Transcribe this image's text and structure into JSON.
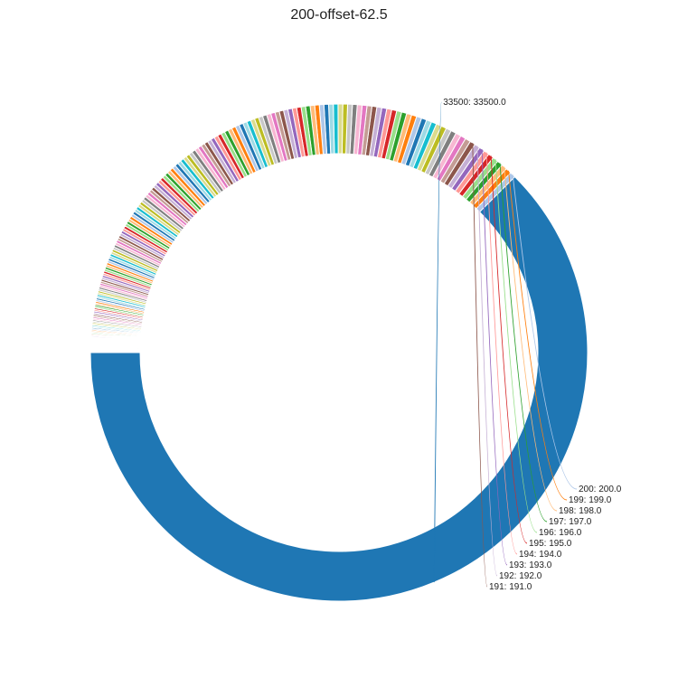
{
  "chart_data": {
    "type": "pie",
    "variant": "donut",
    "title": "200-offset-62.5",
    "start_angle_deg": 180,
    "direction": "counterclockwise",
    "generator": {
      "description": "Large slice then 200 slices valued 200 down to 1",
      "values": [
        33500,
        200,
        199,
        198,
        197,
        196,
        195,
        194,
        193,
        192,
        191,
        190,
        189,
        188,
        187,
        186,
        185,
        184,
        183,
        182,
        181,
        180,
        179,
        178,
        177,
        176,
        175,
        174,
        173,
        172,
        171,
        170,
        169,
        168,
        167,
        166,
        165,
        164,
        163,
        162,
        161,
        160,
        159,
        158,
        157,
        156,
        155,
        154,
        153,
        152,
        151,
        150,
        149,
        148,
        147,
        146,
        145,
        144,
        143,
        142,
        141,
        140,
        139,
        138,
        137,
        136,
        135,
        134,
        133,
        132,
        131,
        130,
        129,
        128,
        127,
        126,
        125,
        124,
        123,
        122,
        121,
        120,
        119,
        118,
        117,
        116,
        115,
        114,
        113,
        112,
        111,
        110,
        109,
        108,
        107,
        106,
        105,
        104,
        103,
        102,
        101,
        100,
        99,
        98,
        97,
        96,
        95,
        94,
        93,
        92,
        91,
        90,
        89,
        88,
        87,
        86,
        85,
        84,
        83,
        82,
        81,
        80,
        79,
        78,
        77,
        76,
        75,
        74,
        73,
        72,
        71,
        70,
        69,
        68,
        67,
        66,
        65,
        64,
        63,
        62,
        61,
        60,
        59,
        58,
        57,
        56,
        55,
        54,
        53,
        52,
        51,
        50,
        49,
        48,
        47,
        46,
        45,
        44,
        43,
        42,
        41,
        40,
        39,
        38,
        37,
        36,
        35,
        34,
        33,
        32,
        31,
        30,
        29,
        28,
        27,
        26,
        25,
        24,
        23,
        22,
        21,
        20,
        19,
        18,
        17,
        16,
        15,
        14,
        13,
        12,
        11,
        10,
        9,
        8,
        7,
        6,
        5,
        4,
        3,
        2,
        1
      ]
    },
    "labeled_slices": [
      {
        "index": 0,
        "text": "33500: 33500.0"
      },
      {
        "index": 1,
        "text": "200: 200.0"
      },
      {
        "index": 2,
        "text": "199: 199.0"
      },
      {
        "index": 3,
        "text": "198: 198.0"
      },
      {
        "index": 4,
        "text": "197: 197.0"
      },
      {
        "index": 5,
        "text": "196: 196.0"
      },
      {
        "index": 6,
        "text": "195: 195.0"
      },
      {
        "index": 7,
        "text": "194: 194.0"
      },
      {
        "index": 8,
        "text": "193: 193.0"
      },
      {
        "index": 9,
        "text": "192: 192.0"
      },
      {
        "index": 10,
        "text": "191: 191.0"
      }
    ],
    "colors": [
      "#1f77b4",
      "#aec7e8",
      "#ff7f0e",
      "#ffbb78",
      "#2ca02c",
      "#98df8a",
      "#d62728",
      "#ff9896",
      "#9467bd",
      "#c5b0d5",
      "#8c564b",
      "#c49c94",
      "#e377c2",
      "#f7b6d2",
      "#7f7f7f",
      "#c7c7c7",
      "#bcbd22",
      "#dbdb8d",
      "#17becf",
      "#9edae5"
    ]
  }
}
